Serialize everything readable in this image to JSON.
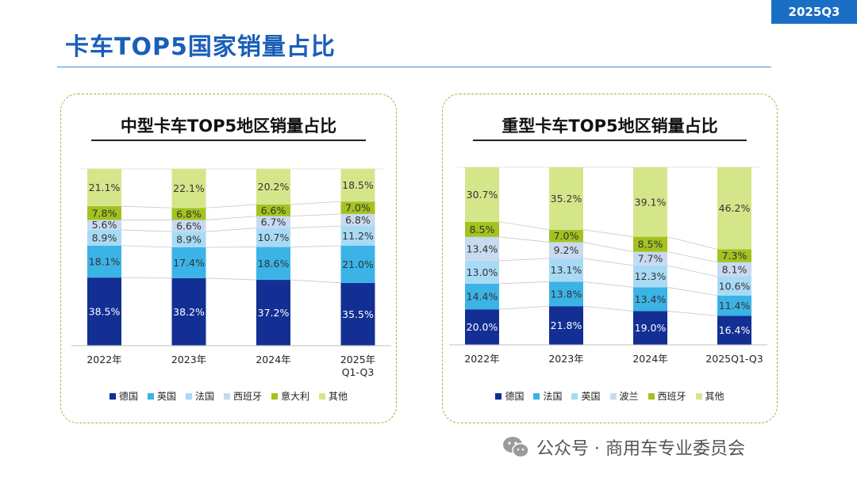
{
  "header": {
    "period_badge": "2025Q3",
    "page_title": "卡车TOP5国家销量占比"
  },
  "footer": {
    "text": "公众号 · 商用车专业委员会",
    "icon": "wechat-icon"
  },
  "chart_data": [
    {
      "type": "bar",
      "stacked": true,
      "percent": true,
      "title": "中型卡车TOP5地区销量占比",
      "categories": [
        "2022年",
        "2023年",
        "2024年",
        "2025年 Q1-Q3"
      ],
      "series": [
        {
          "name": "德国",
          "color": "#132f94",
          "values": [
            38.5,
            38.2,
            37.2,
            35.5
          ]
        },
        {
          "name": "英国",
          "color": "#3bb3e6",
          "values": [
            18.1,
            17.4,
            18.6,
            21.0
          ]
        },
        {
          "name": "法国",
          "color": "#a9daf5",
          "values": [
            8.9,
            8.9,
            10.7,
            11.2
          ]
        },
        {
          "name": "西班牙",
          "color": "#c8daf0",
          "values": [
            5.6,
            6.6,
            6.7,
            6.8
          ]
        },
        {
          "name": "意大利",
          "color": "#a4c21f",
          "values": [
            7.8,
            6.8,
            6.6,
            7.0
          ]
        },
        {
          "name": "其他",
          "color": "#d5e68a",
          "values": [
            21.1,
            22.1,
            20.2,
            18.5
          ]
        }
      ],
      "ylim": [
        0,
        100
      ],
      "legend_position": "bottom"
    },
    {
      "type": "bar",
      "stacked": true,
      "percent": true,
      "title": "重型卡车TOP5地区销量占比",
      "categories": [
        "2022年",
        "2023年",
        "2024年",
        "2025Q1-Q3"
      ],
      "series": [
        {
          "name": "德国",
          "color": "#132f94",
          "values": [
            20.0,
            21.8,
            19.0,
            16.4
          ]
        },
        {
          "name": "法国",
          "color": "#3bb3e6",
          "values": [
            14.4,
            13.8,
            13.4,
            11.4
          ]
        },
        {
          "name": "英国",
          "color": "#a9daf5",
          "values": [
            13.0,
            13.1,
            12.3,
            10.6
          ]
        },
        {
          "name": "波兰",
          "color": "#c8daf0",
          "values": [
            13.4,
            9.2,
            7.7,
            8.1
          ]
        },
        {
          "name": "西班牙",
          "color": "#a4c21f",
          "values": [
            8.5,
            7.0,
            8.5,
            7.3
          ]
        },
        {
          "name": "其他",
          "color": "#d5e68a",
          "values": [
            30.7,
            35.2,
            39.1,
            46.2
          ]
        }
      ],
      "ylim": [
        0,
        100
      ],
      "legend_position": "bottom"
    }
  ]
}
